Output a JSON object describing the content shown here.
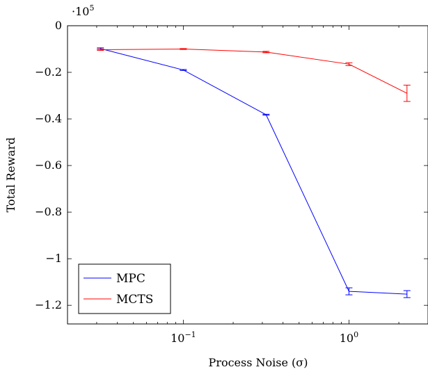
{
  "chart_data": {
    "type": "line",
    "title": "",
    "xlabel": "Process Noise (σ)",
    "ylabel": "Total Reward",
    "x_scale": "log",
    "xlim": [
      0.02,
      3.0
    ],
    "ylim": [
      -1.28,
      0.0
    ],
    "y_multiplier": "·10^5",
    "multiplier_base": "·10",
    "multiplier_exp": "5",
    "x_ticks": [
      {
        "value": 0.1,
        "base": "10",
        "exp": "−1"
      },
      {
        "value": 1.0,
        "base": "10",
        "exp": "0"
      }
    ],
    "y_ticks": [
      {
        "value": 0.0,
        "label": "0"
      },
      {
        "value": -0.2,
        "label": "−0.2"
      },
      {
        "value": -0.4,
        "label": "−0.4"
      },
      {
        "value": -0.6,
        "label": "−0.6"
      },
      {
        "value": -0.8,
        "label": "−0.8"
      },
      {
        "value": -1.0,
        "label": "−1"
      },
      {
        "value": -1.2,
        "label": "−1.2"
      }
    ],
    "grid": false,
    "legend_position": "bottom-left",
    "series": [
      {
        "name": "MPC",
        "color": "#0000ff",
        "x": [
          0.0316,
          0.1,
          0.316,
          1.0,
          2.24
        ],
        "y": [
          -0.098,
          -0.19,
          -0.382,
          -1.14,
          -1.152
        ],
        "err": [
          0.003,
          0.002,
          0.002,
          0.015,
          0.015
        ]
      },
      {
        "name": "MCTS",
        "color": "#ff0000",
        "x": [
          0.0316,
          0.1,
          0.316,
          1.0,
          2.24
        ],
        "y": [
          -0.103,
          -0.1,
          -0.113,
          -0.165,
          -0.29
        ],
        "err": [
          0.003,
          0.002,
          0.003,
          0.006,
          0.035
        ]
      }
    ]
  }
}
